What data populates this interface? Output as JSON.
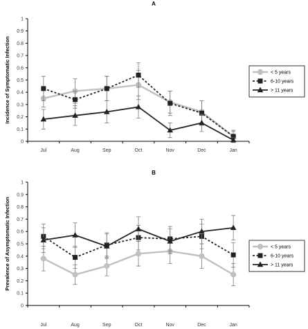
{
  "chart_data": [
    {
      "type": "line",
      "title": "A",
      "ylabel": "Incidence of Symptomatic Infection",
      "xlabel": "",
      "categories": [
        "Jul",
        "Aug",
        "Sep",
        "Oct",
        "Nov",
        "Dec",
        "Jan"
      ],
      "ylim": [
        0,
        1
      ],
      "yticks": [
        "0",
        "0.1",
        "0.2",
        "0.3",
        "0.4",
        "0.5",
        "0.6",
        "0.7",
        "0.8",
        "0.9",
        "1"
      ],
      "legend_position": "right",
      "grid": false,
      "series": [
        {
          "name": "< 5 years",
          "marker": "circle",
          "style": "solid",
          "color": "#c0c0c0",
          "values": [
            0.35,
            0.41,
            0.43,
            0.46,
            0.32,
            0.24,
            0.04
          ],
          "errors": [
            0.07,
            0.1,
            0.1,
            0.12,
            0.09,
            0.09,
            0.04
          ]
        },
        {
          "name": "6-10 years",
          "marker": "square",
          "style": "dashed",
          "color": "#222222",
          "values": [
            0.43,
            0.34,
            0.43,
            0.54,
            0.31,
            0.23,
            0.04
          ],
          "errors": [
            0.1,
            0.07,
            0.1,
            0.1,
            0.1,
            0.1,
            0.05
          ]
        },
        {
          "name": "> 11 years",
          "marker": "triangle",
          "style": "solid",
          "color": "#222222",
          "values": [
            0.18,
            0.21,
            0.24,
            0.28,
            0.09,
            0.15,
            0.01
          ],
          "errors": [
            0.08,
            0.08,
            0.09,
            0.09,
            0.06,
            0.07,
            0.02
          ]
        }
      ]
    },
    {
      "type": "line",
      "title": "B",
      "ylabel": "Prevalence of Asymptomatic Infection",
      "xlabel": "",
      "categories": [
        "Jul",
        "Aug",
        "Sep",
        "Oct",
        "Nov",
        "Dec",
        "Jan"
      ],
      "ylim": [
        0,
        1
      ],
      "yticks": [
        "0",
        "0.1",
        "0.2",
        "0.3",
        "0.4",
        "0.5",
        "0.6",
        "0.7",
        "0.8",
        "0.9",
        "1"
      ],
      "legend_position": "right",
      "grid": false,
      "series": [
        {
          "name": "< 5 years",
          "marker": "circle",
          "style": "solid",
          "color": "#c0c0c0",
          "values": [
            0.38,
            0.25,
            0.32,
            0.42,
            0.44,
            0.4,
            0.25
          ],
          "errors": [
            0.1,
            0.08,
            0.08,
            0.1,
            0.1,
            0.1,
            0.09
          ]
        },
        {
          "name": "6-10 years",
          "marker": "square",
          "style": "dashed",
          "color": "#222222",
          "values": [
            0.56,
            0.39,
            0.49,
            0.55,
            0.54,
            0.56,
            0.41
          ],
          "errors": [
            0.1,
            0.09,
            0.1,
            0.1,
            0.1,
            0.1,
            0.1
          ]
        },
        {
          "name": "> 11 years",
          "marker": "triangle",
          "style": "solid",
          "color": "#222222",
          "values": [
            0.53,
            0.57,
            0.48,
            0.62,
            0.52,
            0.6,
            0.63
          ],
          "errors": [
            0.1,
            0.1,
            0.1,
            0.1,
            0.1,
            0.1,
            0.1
          ]
        }
      ]
    }
  ]
}
